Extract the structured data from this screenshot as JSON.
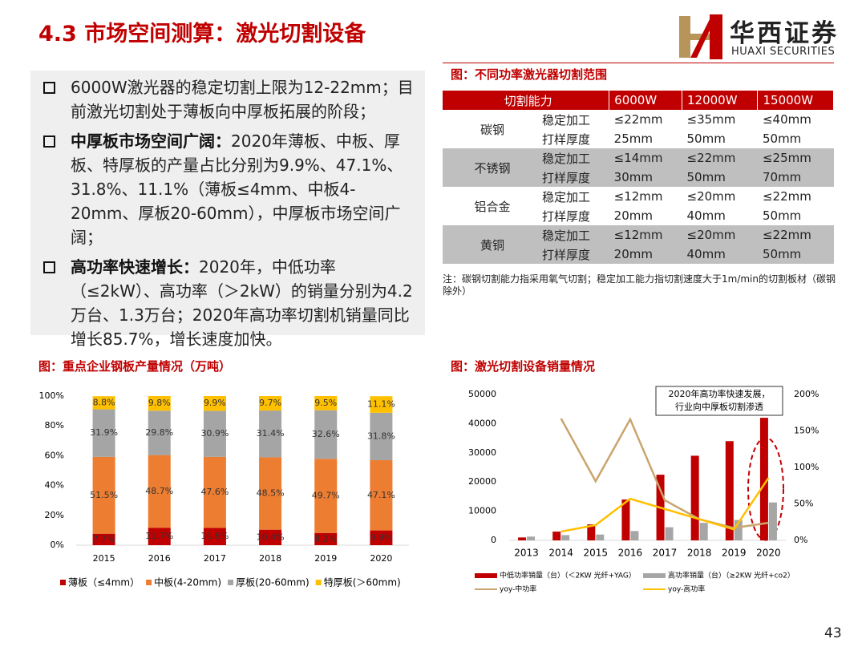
{
  "header": {
    "title": "4.3 市场空间测算：激光切割设备",
    "logo_cn": "华西证券",
    "logo_en": "HUAXI SECURITIES"
  },
  "bullets": [
    {
      "text": "6000W激光器的稳定切割上限为12-22mm；目前激光切割处于薄板向中厚板拓展的阶段；"
    },
    {
      "lead": "中厚板市场空间广阔：",
      "text": "2020年薄板、中板、厚板、特厚板的产量占比分别为9.9%、47.1%、31.8%、11.1%（薄板≤4mm、中板4-20mm、厚板20-60mm），中厚板市场空间广阔；"
    },
    {
      "lead": "高功率快速增长：",
      "text": "2020年，中低功率（≤2kW）、高功率（＞2kW）的销量分别为4.2万台、1.3万台；2020年高功率切割机销量同比增长85.7%，增长速度加快。"
    }
  ],
  "table": {
    "title": "图：不同功率激光器切割范围",
    "header": [
      "切割能力",
      "6000W",
      "12000W",
      "15000W"
    ],
    "groups": [
      {
        "material": "碳钢",
        "rows": [
          [
            "稳定加工",
            "≤22mm",
            "≤35mm",
            "≤40mm"
          ],
          [
            "打样厚度",
            "25mm",
            "50mm",
            "50mm"
          ]
        ]
      },
      {
        "material": "不锈钢",
        "rows": [
          [
            "稳定加工",
            "≤14mm",
            "≤22mm",
            "≤25mm"
          ],
          [
            "打样厚度",
            "30mm",
            "50mm",
            "70mm"
          ]
        ]
      },
      {
        "material": "铝合金",
        "rows": [
          [
            "稳定加工",
            "≤12mm",
            "≤20mm",
            "≤22mm"
          ],
          [
            "打样厚度",
            "20mm",
            "40mm",
            "50mm"
          ]
        ]
      },
      {
        "material": "黄铜",
        "rows": [
          [
            "稳定加工",
            "≤12mm",
            "≤20mm",
            "≤22mm"
          ],
          [
            "打样厚度",
            "20mm",
            "40mm",
            "50mm"
          ]
        ]
      }
    ],
    "note": "注：碳钢切割能力指采用氧气切割；稳定加工能力指切割速度大于1m/min的切割板材（碳钢除外）"
  },
  "chart_data": [
    {
      "type": "bar",
      "stacked": true,
      "title": "图：重点企业钢板产量情况（万吨）",
      "categories": [
        "2015",
        "2016",
        "2017",
        "2018",
        "2019",
        "2020"
      ],
      "ylim": [
        0,
        100
      ],
      "yticks": [
        {
          "value": 0,
          "label": "0%"
        },
        {
          "value": 20,
          "label": "20%"
        },
        {
          "value": 40,
          "label": "40%"
        },
        {
          "value": 60,
          "label": "60%"
        },
        {
          "value": 80,
          "label": "80%"
        },
        {
          "value": 100,
          "label": "100%"
        }
      ],
      "series": [
        {
          "name": "薄板（≤4mm）",
          "color": "#c00000",
          "values": [
            7.7,
            11.7,
            11.6,
            10.4,
            8.2,
            9.9
          ],
          "value_labels": [
            "7.7%",
            "11.7%",
            "11.6%",
            "10.4%",
            "8.2%",
            "9.9%"
          ]
        },
        {
          "name": "中板(4-20mm)",
          "color": "#ed7d31",
          "values": [
            51.5,
            48.7,
            47.6,
            48.5,
            49.7,
            47.1
          ],
          "value_labels": [
            "51.5%",
            "48.7%",
            "47.6%",
            "48.5%",
            "49.7%",
            "47.1%"
          ]
        },
        {
          "name": "厚板(20-60mm)",
          "color": "#a5a5a5",
          "values": [
            31.9,
            29.8,
            30.9,
            31.4,
            32.6,
            31.8
          ],
          "value_labels": [
            "31.9%",
            "29.8%",
            "30.9%",
            "31.4%",
            "32.6%",
            "31.8%"
          ]
        },
        {
          "name": "特厚板(＞60mm)",
          "color": "#ffc000",
          "values": [
            8.8,
            9.8,
            9.9,
            9.7,
            9.5,
            11.1
          ],
          "value_labels": [
            "8.8%",
            "9.8%",
            "9.9%",
            "9.7%",
            "9.5%",
            "11.1%"
          ]
        }
      ]
    },
    {
      "type": "combo",
      "title": "图：激光切割设备销量情况",
      "categories": [
        "2013",
        "2014",
        "2015",
        "2016",
        "2017",
        "2018",
        "2019",
        "2020"
      ],
      "ylim": [
        0,
        50000
      ],
      "yticks": [
        0,
        10000,
        20000,
        30000,
        40000,
        50000
      ],
      "y2lim": [
        0,
        200
      ],
      "y2ticks": [
        {
          "value": 0,
          "label": "0%"
        },
        {
          "value": 50,
          "label": "50%"
        },
        {
          "value": 100,
          "label": "100%"
        },
        {
          "value": 150,
          "label": "150%"
        },
        {
          "value": 200,
          "label": "200%"
        }
      ],
      "annotation": [
        "2020年高功率快速发展，",
        "行业向中厚板切割渗透"
      ],
      "series": [
        {
          "name": "中低功率销量（台）（＜2KW 光纤+YAG）",
          "type": "bar",
          "color": "#c00000",
          "values": [
            1000,
            3000,
            5500,
            14000,
            22500,
            29000,
            34000,
            42000
          ]
        },
        {
          "name": "高功率销量（台）（≥2KW 光纤+co2）",
          "type": "bar",
          "color": "#a6a6a6",
          "values": [
            1300,
            1800,
            2000,
            3200,
            4500,
            6000,
            7000,
            13000
          ]
        },
        {
          "name": "yoy-中功率",
          "type": "line",
          "axis": "y2",
          "color": "#c9a56e",
          "values": [
            null,
            167,
            81,
            166,
            55,
            29,
            17,
            24
          ]
        },
        {
          "name": "yoy-高功率",
          "type": "line",
          "axis": "y2",
          "color": "#ffc000",
          "values": [
            null,
            12,
            21,
            57,
            43,
            29,
            15,
            85.7
          ]
        }
      ]
    }
  ]
}
